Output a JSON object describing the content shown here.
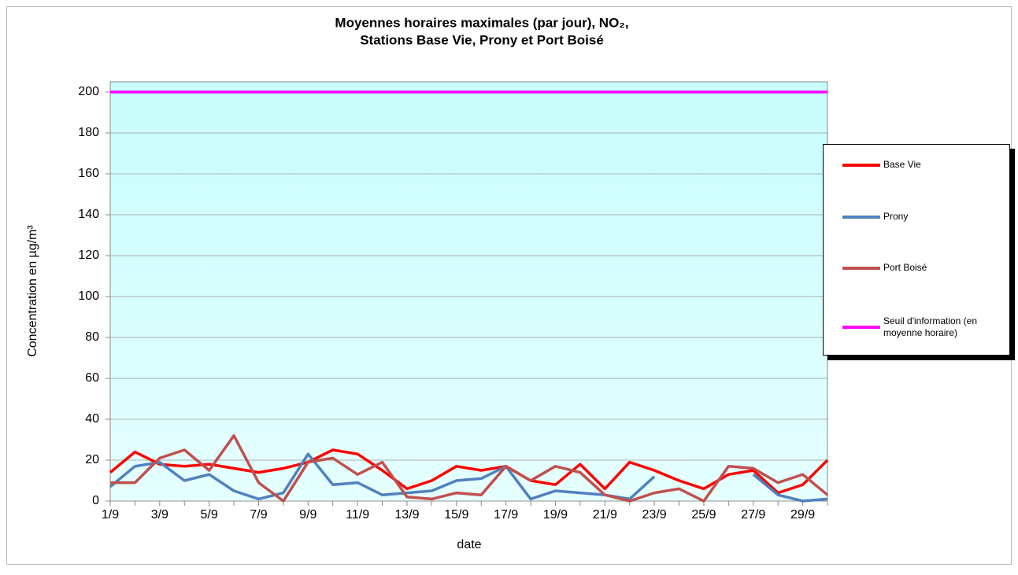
{
  "chart_data": {
    "type": "line",
    "title_lines": [
      "Moyennes horaires maximales (par jour), NO₂,",
      "Stations Base Vie, Prony et Port Boisé"
    ],
    "xlabel": "date",
    "ylabel": "Concentration en µg/m³",
    "categories": [
      "1/9",
      null,
      "3/9",
      null,
      "5/9",
      null,
      "7/9",
      null,
      "9/9",
      null,
      "11/9",
      null,
      "13/9",
      null,
      "15/9",
      null,
      "17/9",
      null,
      "19/9",
      null,
      "21/9",
      null,
      "23/9",
      null,
      "25/9",
      null,
      "27/9",
      null,
      "29/9",
      null
    ],
    "series": [
      {
        "name": "Base Vie",
        "color": "#ff0000",
        "values": [
          14,
          24,
          18,
          17,
          18,
          16,
          14,
          16,
          19,
          25,
          23,
          15,
          6,
          10,
          17,
          15,
          17,
          10,
          8,
          18,
          6,
          19,
          15,
          10,
          6,
          13,
          15,
          4,
          8,
          20
        ]
      },
      {
        "name": "Prony",
        "color": "#4f81bd",
        "values": [
          7,
          17,
          19,
          10,
          13,
          5,
          1,
          4,
          23,
          8,
          9,
          3,
          4,
          5,
          10,
          11,
          17,
          1,
          5,
          4,
          3,
          1,
          12,
          null,
          null,
          null,
          13,
          3,
          0,
          1
        ]
      },
      {
        "name": "Port Boisé",
        "color": "#c0504d",
        "values": [
          9,
          9,
          21,
          25,
          15,
          32,
          9,
          0,
          19,
          21,
          13,
          19,
          2,
          1,
          4,
          3,
          17,
          10,
          17,
          14,
          3,
          0,
          4,
          6,
          0,
          17,
          16,
          9,
          13,
          3
        ]
      },
      {
        "name": "Seuil d'information (en moyenne horaire)",
        "color": "#ff00ff",
        "values": [
          200,
          200,
          200,
          200,
          200,
          200,
          200,
          200,
          200,
          200,
          200,
          200,
          200,
          200,
          200,
          200,
          200,
          200,
          200,
          200,
          200,
          200,
          200,
          200,
          200,
          200,
          200,
          200,
          200,
          200
        ]
      }
    ],
    "ylim": [
      0,
      205
    ],
    "yticks": [
      0,
      20,
      40,
      60,
      80,
      100,
      120,
      140,
      160,
      180,
      200
    ],
    "grid": true,
    "legend": "right"
  }
}
